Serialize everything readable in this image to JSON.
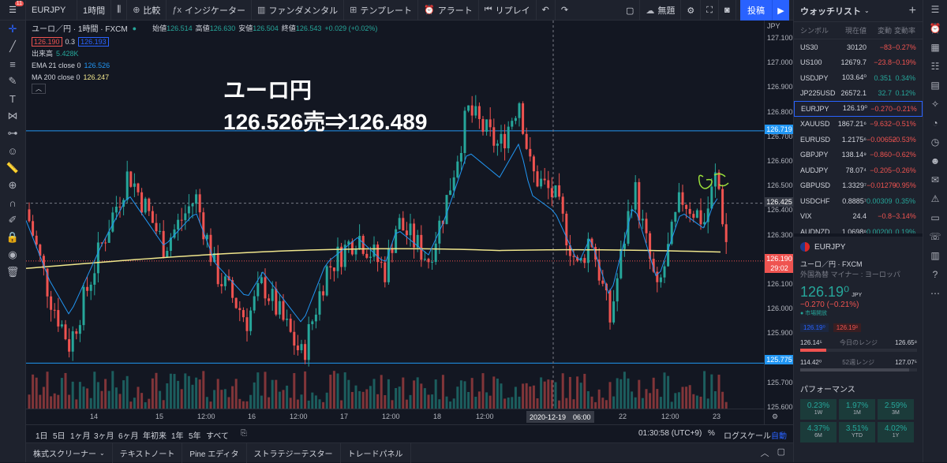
{
  "topbar": {
    "symbol": "EURJPY",
    "interval": "1時間",
    "compare": "比較",
    "indicators": "インジケーター",
    "fundamentals": "ファンダメンタル",
    "templates": "テンプレート",
    "alert": "アラート",
    "replay": "リプレイ",
    "unnamed": "無題",
    "publish": "投稿",
    "notif_count": "11"
  },
  "legend": {
    "title": "ユーロ／円 · 1時間 · FXCM",
    "open_label": "始値",
    "open": "126.514",
    "high_label": "高値",
    "high": "126.630",
    "low_label": "安値",
    "low": "126.504",
    "close_label": "終値",
    "close": "126.543",
    "change": "+0.029 (+0.02%)",
    "bid": "126.190",
    "spread": "0.3",
    "ask": "126.193",
    "volume_label": "出来高",
    "volume": "5.428K",
    "ema_label": "EMA 21 close 0",
    "ema": "126.526",
    "ma_label": "MA 200 close 0",
    "ma": "126.247"
  },
  "annotation": {
    "line1": "ユーロ円",
    "line2": "126.526売⇒126.489"
  },
  "price_axis": {
    "currency": "JPY",
    "ticks": [
      "127.100",
      "127.000",
      "126.900",
      "126.800",
      "126.700",
      "126.600",
      "126.500",
      "126.400",
      "126.300",
      "126.200",
      "126.100",
      "126.000",
      "125.900",
      "125.800",
      "125.700",
      "125.600"
    ],
    "upper_line": "126.719",
    "crosshair": "126.425",
    "current": "126.190",
    "countdown": "29:02",
    "lower_line": "125.775"
  },
  "time_axis": {
    "labels": [
      "14",
      "15",
      "12:00",
      "16",
      "12:00",
      "17",
      "12:00",
      "18",
      "12:00",
      "22",
      "12:00",
      "23"
    ],
    "crosshair": "2020-12-19　06:00"
  },
  "range_bar": {
    "ranges": [
      "1日",
      "5日",
      "1ヶ月",
      "3ヶ月",
      "6ヶ月",
      "年初来",
      "1年",
      "5年",
      "すべて"
    ],
    "clock": "01:30:58 (UTC+9)",
    "percent": "%",
    "log": "ログスケール",
    "auto": "自動"
  },
  "bottom_tabs": [
    "株式スクリーナー",
    "テキストノート",
    "Pine エディタ",
    "ストラテジーテスター",
    "トレードパネル"
  ],
  "watchlist": {
    "title": "ウォッチリスト",
    "col_symbol": "シンボル",
    "col_price": "現在値",
    "col_change": "変動",
    "col_pct": "変動率",
    "rows": [
      {
        "s": "US30",
        "p": "30120",
        "c": "−83",
        "pc": "−0.27%",
        "up": false
      },
      {
        "s": "US100",
        "p": "12679.7",
        "c": "−23.8",
        "pc": "−0.19%",
        "up": false
      },
      {
        "s": "USDJPY",
        "p": "103.64⁰",
        "c": "0.351",
        "pc": "0.34%",
        "up": true
      },
      {
        "s": "JP225USD",
        "p": "26572.1",
        "c": "32.7",
        "pc": "0.12%",
        "up": true
      },
      {
        "s": "EURJPY",
        "p": "126.19⁰",
        "c": "−0.270",
        "pc": "−0.21%",
        "up": false
      },
      {
        "s": "XAUUSD",
        "p": "1867.21⁶",
        "c": "−9.632",
        "pc": "−0.51%",
        "up": false
      },
      {
        "s": "EURUSD",
        "p": "1.2175⁶",
        "c": "−0.00652",
        "pc": "−0.53%",
        "up": false
      },
      {
        "s": "GBPJPY",
        "p": "138.14⁹",
        "c": "−0.860",
        "pc": "−0.62%",
        "up": false
      },
      {
        "s": "AUDJPY",
        "p": "78.07⁴",
        "c": "−0.205",
        "pc": "−0.26%",
        "up": false
      },
      {
        "s": "GBPUSD",
        "p": "1.3329⁷",
        "c": "−0.01279",
        "pc": "−0.95%",
        "up": false
      },
      {
        "s": "USDCHF",
        "p": "0.8885⁷",
        "c": "0.00309",
        "pc": "0.35%",
        "up": true
      },
      {
        "s": "VIX",
        "p": "24.4",
        "c": "−0.8",
        "pc": "−3.14%",
        "up": false
      },
      {
        "s": "AUDNZD",
        "p": "1.0698⁶",
        "c": "0.00200",
        "pc": "0.19%",
        "up": true
      }
    ]
  },
  "detail": {
    "symbol": "EURJPY",
    "name": "ユーロ／円 · FXCM",
    "category": "外国為替 マイナー : ヨーロッパ",
    "price": "126.19⁰",
    "currency": "JPY",
    "change": "−0.270 (−0.21%)",
    "market": "● 市場開放",
    "bid": "126.19⁰",
    "ask": "126.19³",
    "day_low": "126.14⁵",
    "day_label": "今日のレンジ",
    "day_high": "126.65⁸",
    "wk_low": "114.42⁰",
    "wk_label": "52週レンジ",
    "wk_high": "127.07⁵",
    "perf_title": "パフォーマンス",
    "perf": [
      {
        "v": "0.23%",
        "l": "1W"
      },
      {
        "v": "1.97%",
        "l": "1M"
      },
      {
        "v": "2.59%",
        "l": "3M"
      },
      {
        "v": "4.37%",
        "l": "6M"
      },
      {
        "v": "3.51%",
        "l": "YTD"
      },
      {
        "v": "4.02%",
        "l": "1Y"
      }
    ]
  },
  "colors": {
    "up": "#26a69a",
    "down": "#ef5350",
    "accent": "#2962ff",
    "ma": "#f0e68c",
    "ema": "#2196f3"
  }
}
